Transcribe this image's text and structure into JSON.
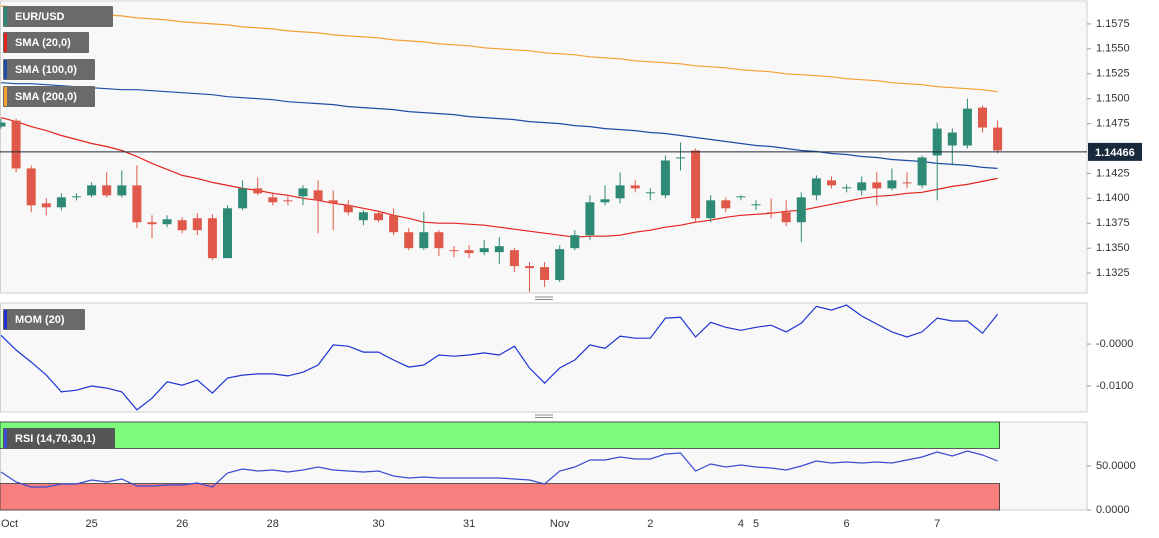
{
  "chart_data": [
    {
      "type": "candlestick",
      "name": "EUR/USD",
      "up_color": "#2e8a75",
      "down_color": "#e0584a",
      "categories": [
        "Oct",
        null,
        null,
        null,
        null,
        null,
        "25",
        null,
        null,
        null,
        null,
        null,
        "26",
        null,
        null,
        null,
        null,
        null,
        "28",
        null,
        null,
        null,
        null,
        null,
        null,
        "30",
        null,
        null,
        null,
        null,
        null,
        "31",
        null,
        null,
        null,
        null,
        null,
        "Nov",
        null,
        null,
        null,
        null,
        null,
        "2",
        null,
        null,
        null,
        null,
        null,
        "4",
        "5",
        null,
        null,
        null,
        null,
        null,
        "6",
        null,
        null,
        null,
        null,
        null,
        "7",
        null,
        null,
        null,
        null
      ],
      "open": [
        1.1472,
        1.1478,
        1.143,
        1.1395,
        1.1391,
        1.1401,
        1.1403,
        1.1413,
        1.1403,
        1.1413,
        1.1376,
        1.1374,
        1.1378,
        1.138,
        1.138,
        1.134,
        1.139,
        1.141,
        1.1401,
        1.1398,
        1.1402,
        1.1408,
        1.1398,
        1.1393,
        1.1378,
        1.1385,
        1.1383,
        1.1366,
        1.135,
        1.1366,
        1.1348,
        1.1348,
        1.1346,
        1.1346,
        1.1348,
        1.1332,
        1.1331,
        1.1318,
        1.135,
        1.1363,
        1.1396,
        1.14,
        1.1413,
        1.1405,
        1.1403,
        1.144,
        1.1448,
        1.138,
        1.1398,
        1.1401,
        1.1393,
        1.1386,
        1.1386,
        1.1376,
        1.1403,
        1.1418,
        1.141,
        1.1408,
        1.1416,
        1.141,
        1.1416,
        1.1413,
        1.1443,
        1.1453,
        1.1453,
        1.1491,
        1.1471
      ],
      "high": [
        1.148,
        1.148,
        1.1433,
        1.14,
        1.1405,
        1.1405,
        1.1416,
        1.1426,
        1.1428,
        1.1433,
        1.1383,
        1.1383,
        1.1381,
        1.1385,
        1.1384,
        1.1393,
        1.1418,
        1.1421,
        1.1406,
        1.1402,
        1.1413,
        1.1418,
        1.1408,
        1.1398,
        1.1388,
        1.1388,
        1.139,
        1.137,
        1.1386,
        1.1368,
        1.1352,
        1.1353,
        1.1358,
        1.1361,
        1.135,
        1.1336,
        1.1336,
        1.1353,
        1.1368,
        1.1403,
        1.1413,
        1.1426,
        1.1418,
        1.141,
        1.1443,
        1.1456,
        1.145,
        1.1403,
        1.1401,
        1.1403,
        1.1398,
        1.14,
        1.1398,
        1.1406,
        1.1423,
        1.1422,
        1.1414,
        1.1422,
        1.1426,
        1.143,
        1.1426,
        1.1443,
        1.1476,
        1.147,
        1.15,
        1.1493,
        1.1478
      ],
      "low": [
        1.147,
        1.1426,
        1.1386,
        1.1383,
        1.1388,
        1.1398,
        1.1401,
        1.1401,
        1.1401,
        1.137,
        1.136,
        1.1371,
        1.1365,
        1.1363,
        1.1338,
        1.134,
        1.1388,
        1.1403,
        1.1393,
        1.1393,
        1.1393,
        1.1365,
        1.1368,
        1.1383,
        1.1373,
        1.1376,
        1.1363,
        1.1348,
        1.1348,
        1.1342,
        1.1341,
        1.134,
        1.1343,
        1.1334,
        1.1326,
        1.1306,
        1.1311,
        1.1316,
        1.1348,
        1.1358,
        1.1393,
        1.1395,
        1.1406,
        1.1398,
        1.14,
        1.1428,
        1.1376,
        1.1376,
        1.1386,
        1.1398,
        1.1388,
        1.138,
        1.1372,
        1.1356,
        1.1398,
        1.141,
        1.1406,
        1.1403,
        1.1393,
        1.1408,
        1.141,
        1.141,
        1.1398,
        1.1433,
        1.145,
        1.1466,
        1.1445
      ],
      "close": [
        1.1476,
        1.143,
        1.1393,
        1.1391,
        1.1401,
        1.1402,
        1.1413,
        1.1403,
        1.1413,
        1.1376,
        1.1374,
        1.1379,
        1.1368,
        1.1368,
        1.134,
        1.139,
        1.141,
        1.1405,
        1.1396,
        1.1397,
        1.141,
        1.1398,
        1.1395,
        1.1386,
        1.1386,
        1.1378,
        1.1366,
        1.135,
        1.1366,
        1.135,
        1.1347,
        1.1345,
        1.135,
        1.1352,
        1.1332,
        1.133,
        1.1318,
        1.1349,
        1.1363,
        1.1396,
        1.1399,
        1.1413,
        1.141,
        1.1406,
        1.1438,
        1.1441,
        1.138,
        1.1398,
        1.139,
        1.1402,
        1.1394,
        1.1385,
        1.1376,
        1.1401,
        1.142,
        1.1413,
        1.1411,
        1.1416,
        1.141,
        1.1418,
        1.1415,
        1.1441,
        1.147,
        1.1466,
        1.149,
        1.1471,
        1.1448
      ],
      "series": [
        {
          "name": "SMA (20,0)",
          "color": "#e4231e",
          "values": [
            1.1481,
            1.1477,
            1.1472,
            1.1468,
            1.1463,
            1.1459,
            1.1455,
            1.1452,
            1.1448,
            1.1442,
            1.1435,
            1.1429,
            1.1423,
            1.142,
            1.1416,
            1.1413,
            1.141,
            1.1408,
            1.1405,
            1.1403,
            1.14,
            1.1398,
            1.1395,
            1.1393,
            1.139,
            1.1387,
            1.1383,
            1.138,
            1.1376,
            1.1375,
            1.1375,
            1.1374,
            1.1373,
            1.1371,
            1.1369,
            1.1367,
            1.1365,
            1.1363,
            1.1361,
            1.1362,
            1.1362,
            1.1363,
            1.1366,
            1.1368,
            1.1371,
            1.1373,
            1.1376,
            1.1378,
            1.1381,
            1.1383,
            1.1384,
            1.1385,
            1.1387,
            1.1388,
            1.1391,
            1.1394,
            1.1397,
            1.14,
            1.1402,
            1.1403,
            1.1405,
            1.1406,
            1.1409,
            1.1412,
            1.1414,
            1.1417,
            1.142
          ]
        },
        {
          "name": "SMA (100,0)",
          "color": "#1d4ea6",
          "values": [
            1.1516,
            1.1515,
            1.1515,
            1.1514,
            1.1513,
            1.1512,
            1.1511,
            1.151,
            1.1509,
            1.1509,
            1.1508,
            1.1507,
            1.1506,
            1.1505,
            1.1504,
            1.1502,
            1.1501,
            1.15,
            1.1499,
            1.1497,
            1.1496,
            1.1495,
            1.1494,
            1.1492,
            1.1491,
            1.149,
            1.1489,
            1.1487,
            1.1486,
            1.1485,
            1.1484,
            1.1482,
            1.1481,
            1.148,
            1.1479,
            1.1477,
            1.1476,
            1.1475,
            1.1473,
            1.1472,
            1.147,
            1.1469,
            1.1468,
            1.1466,
            1.1465,
            1.1463,
            1.1461,
            1.1459,
            1.1457,
            1.1455,
            1.1453,
            1.1452,
            1.145,
            1.1448,
            1.1447,
            1.1445,
            1.1444,
            1.1442,
            1.1441,
            1.1439,
            1.1438,
            1.1437,
            1.1435,
            1.1434,
            1.1433,
            1.1431,
            1.143
          ]
        },
        {
          "name": "SMA (200,0)",
          "color": "#f5a031",
          "values": [
            1.1593,
            1.1592,
            1.159,
            1.1589,
            1.1588,
            1.1587,
            1.1585,
            1.1584,
            1.1583,
            1.1581,
            1.158,
            1.1579,
            1.1577,
            1.1576,
            1.1575,
            1.1574,
            1.1572,
            1.1571,
            1.157,
            1.1568,
            1.1567,
            1.1566,
            1.1564,
            1.1563,
            1.1562,
            1.1561,
            1.1559,
            1.1558,
            1.1557,
            1.1555,
            1.1554,
            1.1553,
            1.1551,
            1.155,
            1.1549,
            1.1548,
            1.1546,
            1.1545,
            1.1544,
            1.1542,
            1.1541,
            1.154,
            1.1538,
            1.1537,
            1.1536,
            1.1535,
            1.1533,
            1.1532,
            1.1531,
            1.1529,
            1.1528,
            1.1527,
            1.1525,
            1.1524,
            1.1523,
            1.1522,
            1.152,
            1.1519,
            1.1518,
            1.1516,
            1.1515,
            1.1514,
            1.1512,
            1.1511,
            1.151,
            1.1509,
            1.1507
          ]
        }
      ],
      "last_price": 1.14466,
      "ylim": [
        1.1305,
        1.1598
      ],
      "yticks": [
        1.1575,
        {
          "value": 1.155,
          "label": "1.1550"
        },
        1.1525,
        {
          "value": 1.15,
          "label": "1.1500"
        },
        1.1475,
        1.1425,
        {
          "value": 1.14,
          "label": "1.1400"
        },
        1.1375,
        {
          "value": 1.135,
          "label": "1.1350"
        },
        1.1325
      ]
    },
    {
      "type": "line",
      "series": [
        {
          "name": "MOM (20)",
          "color": "#1f33d0",
          "values": [
            0.0021,
            -0.0014,
            -0.0043,
            -0.0074,
            -0.0114,
            -0.011,
            -0.01,
            -0.0105,
            -0.0114,
            -0.0157,
            -0.0129,
            -0.009,
            -0.0098,
            -0.0086,
            -0.0117,
            -0.0081,
            -0.0074,
            -0.0071,
            -0.0071,
            -0.0076,
            -0.0067,
            -0.005,
            -0.0002,
            -0.0005,
            -0.0019,
            -0.0019,
            -0.0038,
            -0.0055,
            -0.005,
            -0.0026,
            -0.0029,
            -0.0026,
            -0.0021,
            -0.0026,
            -0.0005,
            -0.0057,
            -0.0093,
            -0.0057,
            -0.0038,
            -0.0002,
            -0.001,
            0.0019,
            0.0014,
            0.0014,
            0.0062,
            0.0064,
            0.0017,
            0.0052,
            0.004,
            0.0033,
            0.004,
            0.0045,
            0.0029,
            0.005,
            0.009,
            0.0081,
            0.0093,
            0.0067,
            0.0048,
            0.0029,
            0.0017,
            0.0029,
            0.0062,
            0.0055,
            0.0055,
            0.0026,
            0.0071
          ]
        }
      ],
      "ylim": [
        -0.0162,
        0.0098
      ],
      "yticks": [
        {
          "value": 0,
          "label": "-0.0000"
        },
        {
          "value": -0.01,
          "label": "-0.0100"
        }
      ]
    },
    {
      "type": "line",
      "series": [
        {
          "name": "RSI (14,70,30,1)",
          "color": "#3a4cd0",
          "values": [
            43.2,
            31.8,
            26.1,
            26.1,
            29.5,
            29.5,
            34.1,
            31.8,
            35.2,
            27.3,
            27.3,
            28.4,
            28.4,
            30.7,
            26.1,
            42.0,
            46.6,
            44.3,
            45.5,
            43.2,
            45.5,
            48.9,
            45.5,
            44.3,
            43.2,
            44.3,
            38.6,
            36.4,
            37.5,
            36.4,
            36.4,
            36.4,
            36.4,
            36.4,
            35.2,
            34.1,
            29.5,
            44.3,
            48.9,
            56.8,
            56.8,
            60.2,
            58.0,
            58.0,
            63.6,
            64.8,
            44.3,
            52.3,
            48.9,
            51.1,
            48.9,
            47.7,
            45.5,
            50.0,
            55.7,
            53.4,
            54.5,
            53.4,
            54.5,
            53.4,
            56.8,
            60.2,
            65.9,
            61.4,
            67.0,
            62.5,
            55.7
          ]
        }
      ],
      "bands": [
        {
          "from": 70,
          "to": 100,
          "color": "#7cfa7c"
        },
        {
          "from": 0,
          "to": 30,
          "color": "#f97e7e"
        }
      ],
      "ylim": [
        0,
        100
      ],
      "yticks": [
        {
          "value": 50,
          "label": "50.0000"
        },
        {
          "value": 0,
          "label": "0.0000"
        }
      ]
    }
  ]
}
